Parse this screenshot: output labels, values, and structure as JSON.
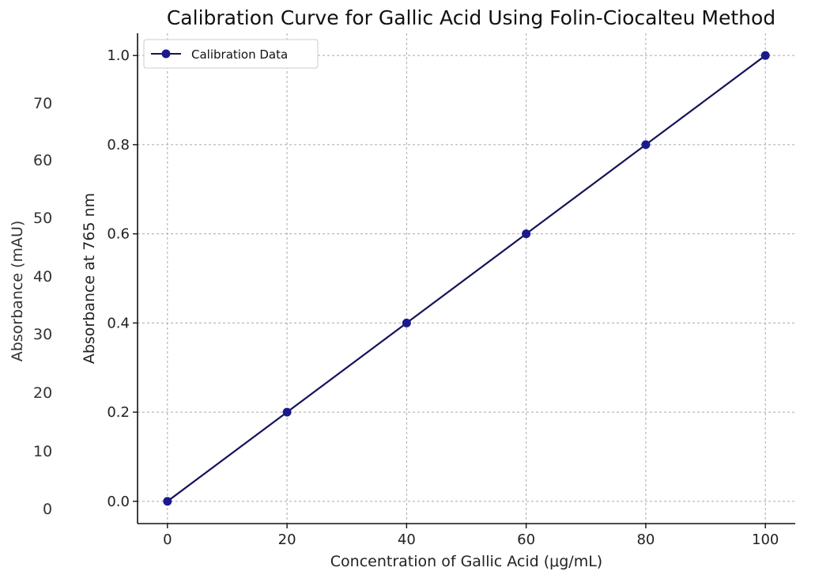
{
  "background_panel": {
    "ylabel": "Absorbance (mAU)",
    "tick_labels": [
      "70",
      "60",
      "50",
      "40",
      "30",
      "20",
      "10",
      "0"
    ]
  },
  "chart_data": {
    "type": "line",
    "title": "Calibration Curve for Gallic Acid Using Folin-Ciocalteu Method",
    "xlabel": "Concentration of Gallic Acid (μg/mL)",
    "ylabel": "Absorbance at 765 nm",
    "x": [
      0,
      20,
      40,
      60,
      80,
      100
    ],
    "series": [
      {
        "name": "Calibration Data",
        "values": [
          0.0,
          0.2,
          0.4,
          0.6,
          0.8,
          1.0
        ],
        "color": "#1a1a8c",
        "line_color": "#14145a",
        "marker": "circle"
      }
    ],
    "xticks": [
      "0",
      "20",
      "40",
      "60",
      "80",
      "100"
    ],
    "yticks": [
      "0.0",
      "0.2",
      "0.4",
      "0.6",
      "0.8",
      "1.0"
    ],
    "xlim": [
      -5,
      105
    ],
    "ylim": [
      -0.05,
      1.05
    ],
    "grid": true,
    "legend_position": "upper-left"
  }
}
